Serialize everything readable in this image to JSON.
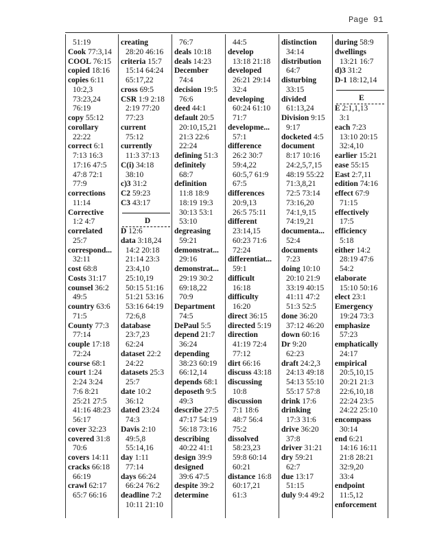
{
  "header": {
    "page_label": "Page 91"
  },
  "columns": [
    [
      {
        "refs": "51:19"
      },
      {
        "term": "Cook",
        "refs": "77:3,14"
      },
      {
        "term": "COOL",
        "refs": "76:15"
      },
      {
        "term": "copied",
        "refs": "18:16"
      },
      {
        "term": "copies",
        "refs": "6:11"
      },
      {
        "refs": "10:2,3"
      },
      {
        "refs": "73:23,24"
      },
      {
        "refs": "76:19"
      },
      {
        "term": "copy",
        "refs": "55:12"
      },
      {
        "term": "corollary"
      },
      {
        "refs": "22:22"
      },
      {
        "term": "correct",
        "refs": "6:1"
      },
      {
        "refs": "7:13 16:3"
      },
      {
        "refs": "17:16 47:5"
      },
      {
        "refs": "47:8 72:1"
      },
      {
        "refs": "77:9"
      },
      {
        "term": "corrections"
      },
      {
        "refs": "11:14"
      },
      {
        "term": "Corrective"
      },
      {
        "refs": "1:2 4:7"
      },
      {
        "term": "correlated"
      },
      {
        "refs": "25:7"
      },
      {
        "term": "correspond..."
      },
      {
        "refs": "32:11"
      },
      {
        "term": "cost",
        "refs": "68:8"
      },
      {
        "term": "Costs",
        "refs": "31:17"
      },
      {
        "term": "counsel",
        "refs": "36:2"
      },
      {
        "refs": "49:5"
      },
      {
        "term": "country",
        "refs": "63:6"
      },
      {
        "refs": "71:5"
      },
      {
        "term": "County",
        "refs": "77:3"
      },
      {
        "refs": "77:14"
      },
      {
        "term": "couple",
        "refs": "17:18"
      },
      {
        "refs": "72:24"
      },
      {
        "term": "course",
        "refs": "68:1"
      },
      {
        "term": "court",
        "refs": "1:24"
      },
      {
        "refs": "2:24 3:24"
      },
      {
        "refs": "7:6 8:21"
      },
      {
        "refs": "25:21 27:5"
      },
      {
        "refs": "41:16 48:23"
      },
      {
        "refs": "56:17"
      },
      {
        "term": "cover",
        "refs": "32:23"
      },
      {
        "term": "covered",
        "refs": "31:8"
      },
      {
        "refs": "70:6"
      },
      {
        "term": "covers",
        "refs": "14:11"
      },
      {
        "term": "cracks",
        "refs": "66:18"
      },
      {
        "refs": "66:19"
      },
      {
        "term": "crawl",
        "refs": "62:17"
      },
      {
        "refs": "65:7 66:16"
      }
    ],
    [
      {
        "term": "creating"
      },
      {
        "refs": "28:20 46:16"
      },
      {
        "term": "criteria",
        "refs": "15:7"
      },
      {
        "refs": "15:14 64:24"
      },
      {
        "refs": "65:17,22"
      },
      {
        "term": "cross",
        "refs": "69:5"
      },
      {
        "term": "CSR",
        "refs": "1:9 2:18"
      },
      {
        "refs": "2:19 77:20"
      },
      {
        "refs": "77:23"
      },
      {
        "term": "current"
      },
      {
        "refs": "75:12"
      },
      {
        "term": "currently"
      },
      {
        "refs": "11:3 37:13"
      },
      {
        "term": "C(i)",
        "refs": "34:18"
      },
      {
        "refs": "38:10"
      },
      {
        "term": "c)3",
        "refs": "31:2"
      },
      {
        "term": "C2",
        "refs": "59:23"
      },
      {
        "term": "C3",
        "refs": "43:17"
      },
      {
        "section": "D"
      },
      {
        "term": "D",
        "refs": "12:6"
      },
      {
        "term": "data",
        "refs": "3:18,24"
      },
      {
        "refs": "14:2 20:18"
      },
      {
        "refs": "21:14 23:3"
      },
      {
        "refs": "23:4,10"
      },
      {
        "refs": "25:10,19"
      },
      {
        "refs": "50:15 51:16"
      },
      {
        "refs": "51:21 53:16"
      },
      {
        "refs": "53:16 64:19"
      },
      {
        "refs": "72:6,8"
      },
      {
        "term": "database"
      },
      {
        "refs": "23:7,23"
      },
      {
        "refs": "62:24"
      },
      {
        "term": "dataset",
        "refs": "22:2"
      },
      {
        "refs": "24:22"
      },
      {
        "term": "datasets",
        "refs": "25:3"
      },
      {
        "refs": "25:7"
      },
      {
        "term": "date",
        "refs": "10:2"
      },
      {
        "refs": "36:12"
      },
      {
        "term": "dated",
        "refs": "23:24"
      },
      {
        "refs": "74:3"
      },
      {
        "term": "Davis",
        "refs": "2:10"
      },
      {
        "refs": "49:5,8"
      },
      {
        "refs": "55:14,16"
      },
      {
        "term": "day",
        "refs": "1:11"
      },
      {
        "refs": "77:14"
      },
      {
        "term": "days",
        "refs": "66:24"
      },
      {
        "refs": "66:24 76:2"
      },
      {
        "term": "deadline",
        "refs": "7:2"
      },
      {
        "refs": "10:11 21:10"
      }
    ],
    [
      {
        "refs": "76:7"
      },
      {
        "term": "deals",
        "refs": "10:18"
      },
      {
        "term": "deals",
        "refs": "14:23"
      },
      {
        "term": "December"
      },
      {
        "refs": "74:4"
      },
      {
        "term": "decision",
        "refs": "19:5"
      },
      {
        "refs": "76:6"
      },
      {
        "term": "deed",
        "refs": "44:1"
      },
      {
        "term": "default",
        "refs": "20:5"
      },
      {
        "refs": "20:10,15,21"
      },
      {
        "refs": "21:3 22:6"
      },
      {
        "refs": "22:24"
      },
      {
        "term": "defining",
        "refs": "51:3"
      },
      {
        "term": "definitely"
      },
      {
        "refs": "68:7"
      },
      {
        "term": "definition"
      },
      {
        "refs": "11:8 18:9"
      },
      {
        "refs": "18:19 19:3"
      },
      {
        "refs": "30:13 53:1"
      },
      {
        "refs": "53:10"
      },
      {
        "term": "degreasing"
      },
      {
        "refs": "59:21"
      },
      {
        "term": "demonstrat..."
      },
      {
        "refs": "29:16"
      },
      {
        "term": "demonstrat..."
      },
      {
        "refs": "29:19 30:2"
      },
      {
        "refs": "69:18,22"
      },
      {
        "refs": "70:9"
      },
      {
        "term": "Department"
      },
      {
        "refs": "74:5"
      },
      {
        "term": "DePaul",
        "refs": "5:5"
      },
      {
        "term": "depend",
        "refs": "21:7"
      },
      {
        "refs": "36:24"
      },
      {
        "term": "depending"
      },
      {
        "refs": "38:23 60:19"
      },
      {
        "refs": "66:12,14"
      },
      {
        "term": "depends",
        "refs": "68:1"
      },
      {
        "term": "deposeth",
        "refs": "9:5"
      },
      {
        "refs": "49:3"
      },
      {
        "term": "describe",
        "refs": "27:5"
      },
      {
        "refs": "47:17 54:19"
      },
      {
        "refs": "56:18 73:16"
      },
      {
        "term": "describing"
      },
      {
        "refs": "40:22 41:1"
      },
      {
        "term": "design",
        "refs": "39:9"
      },
      {
        "term": "designed"
      },
      {
        "refs": "39:6 47:5"
      },
      {
        "term": "despite",
        "refs": "39:2"
      },
      {
        "term": "determine"
      }
    ],
    [
      {
        "refs": "44:5"
      },
      {
        "term": "develop"
      },
      {
        "refs": "13:18 21:18"
      },
      {
        "term": "developed"
      },
      {
        "refs": "26:21 29:14"
      },
      {
        "refs": "32:4"
      },
      {
        "term": "developing"
      },
      {
        "refs": "60:24 61:10"
      },
      {
        "refs": "71:7"
      },
      {
        "term": "developme..."
      },
      {
        "refs": "57:1"
      },
      {
        "term": "difference"
      },
      {
        "refs": "26:2 30:7"
      },
      {
        "refs": "59:4,22"
      },
      {
        "refs": "60:5,7 61:9"
      },
      {
        "refs": "67:5"
      },
      {
        "term": "differences"
      },
      {
        "refs": "20:9,13"
      },
      {
        "refs": "26:5 75:11"
      },
      {
        "term": "different"
      },
      {
        "refs": "23:14,15"
      },
      {
        "refs": "60:23 71:6"
      },
      {
        "refs": "72:24"
      },
      {
        "term": "differentiat..."
      },
      {
        "refs": "59:1"
      },
      {
        "term": "difficult"
      },
      {
        "refs": "16:18"
      },
      {
        "term": "difficulty"
      },
      {
        "refs": "16:20"
      },
      {
        "term": "direct",
        "refs": "36:15"
      },
      {
        "term": "directed",
        "refs": "5:19"
      },
      {
        "term": "direction"
      },
      {
        "refs": "41:19 72:4"
      },
      {
        "refs": "77:12"
      },
      {
        "term": "dirt",
        "refs": "66:16"
      },
      {
        "term": "discuss",
        "refs": "43:18"
      },
      {
        "term": "discussing"
      },
      {
        "refs": "10:8"
      },
      {
        "term": "discussion"
      },
      {
        "refs": "7:1 18:6"
      },
      {
        "refs": "48:7 56:4"
      },
      {
        "refs": "75:2"
      },
      {
        "term": "dissolved"
      },
      {
        "refs": "58:23,23"
      },
      {
        "refs": "59:8 60:14"
      },
      {
        "refs": "60:21"
      },
      {
        "term": "distance",
        "refs": "16:8"
      },
      {
        "refs": "60:17,21"
      },
      {
        "refs": "61:3"
      }
    ],
    [
      {
        "term": "distinction"
      },
      {
        "refs": "34:14"
      },
      {
        "term": "distribution"
      },
      {
        "refs": "64:7"
      },
      {
        "term": "disturbing"
      },
      {
        "refs": "33:15"
      },
      {
        "term": "divided"
      },
      {
        "refs": "61:13,24"
      },
      {
        "term": "Division",
        "refs": "9:15"
      },
      {
        "refs": "9:17"
      },
      {
        "term": "docketed",
        "refs": "4:5"
      },
      {
        "term": "document"
      },
      {
        "refs": "8:17 10:16"
      },
      {
        "refs": "24:2,5,7,15"
      },
      {
        "refs": "48:19 55:22"
      },
      {
        "refs": "71:3,8,21"
      },
      {
        "refs": "72:5 73:14"
      },
      {
        "refs": "73:16,20"
      },
      {
        "refs": "74:1,9,15"
      },
      {
        "refs": "74:19,21"
      },
      {
        "term": "documenta..."
      },
      {
        "refs": "52:4"
      },
      {
        "term": "documents"
      },
      {
        "refs": "7:23"
      },
      {
        "term": "doing",
        "refs": "10:10"
      },
      {
        "refs": "20:10 21:9"
      },
      {
        "refs": "33:19 40:15"
      },
      {
        "refs": "41:11 47:2"
      },
      {
        "refs": "51:3 52:5"
      },
      {
        "term": "done",
        "refs": "36:20"
      },
      {
        "refs": "37:12 46:20"
      },
      {
        "term": "down",
        "refs": "60:16"
      },
      {
        "term": "Dr",
        "refs": "9:20"
      },
      {
        "refs": "62:23"
      },
      {
        "term": "draft",
        "refs": "24:2,3"
      },
      {
        "refs": "24:13 49:18"
      },
      {
        "refs": "54:13 55:10"
      },
      {
        "refs": "55:17 57:8"
      },
      {
        "term": "drink",
        "refs": "17:6"
      },
      {
        "term": "drinking"
      },
      {
        "refs": "17:3 31:6"
      },
      {
        "term": "drive",
        "refs": "36:20"
      },
      {
        "refs": "37:8"
      },
      {
        "term": "driver",
        "refs": "31:21"
      },
      {
        "term": "dry",
        "refs": "59:21"
      },
      {
        "refs": "62:7"
      },
      {
        "term": "due",
        "refs": "13:17"
      },
      {
        "refs": "51:15"
      },
      {
        "term": "duly",
        "refs": "9:4 49:2"
      }
    ],
    [
      {
        "term": "during",
        "refs": "58:9"
      },
      {
        "term": "dwellings"
      },
      {
        "refs": "13:21 16:7"
      },
      {
        "term": "d)3",
        "refs": "31:2"
      },
      {
        "term": "D-1",
        "refs": "18:12,14"
      },
      {
        "section": "E"
      },
      {
        "term": "E",
        "refs": "2:1,1,13"
      },
      {
        "refs": "3:1"
      },
      {
        "term": "each",
        "refs": "7:23"
      },
      {
        "refs": "13:10 20:15"
      },
      {
        "refs": "32:4,10"
      },
      {
        "term": "earlier",
        "refs": "15:21"
      },
      {
        "term": "ease",
        "refs": "55:15"
      },
      {
        "term": "East",
        "refs": "2:7,11"
      },
      {
        "term": "edition",
        "refs": "74:16"
      },
      {
        "term": "effect",
        "refs": "67:9"
      },
      {
        "refs": "71:15"
      },
      {
        "term": "effectively"
      },
      {
        "refs": "17:5"
      },
      {
        "term": "efficiency"
      },
      {
        "refs": "5:18"
      },
      {
        "term": "either",
        "refs": "14:2"
      },
      {
        "refs": "28:19 47:6"
      },
      {
        "refs": "54:2"
      },
      {
        "term": "elaborate"
      },
      {
        "refs": "15:10 50:16"
      },
      {
        "term": "elect",
        "refs": "23:1"
      },
      {
        "term": "Emergency"
      },
      {
        "refs": "19:24 73:3"
      },
      {
        "term": "emphasize"
      },
      {
        "refs": "57:23"
      },
      {
        "term": "emphatically"
      },
      {
        "refs": "24:17"
      },
      {
        "term": "empirical"
      },
      {
        "refs": "20:5,10,15"
      },
      {
        "refs": "20:21 21:3"
      },
      {
        "refs": "22:6,10,18"
      },
      {
        "refs": "22:24 23:5"
      },
      {
        "refs": "24:22 25:10"
      },
      {
        "term": "encompass"
      },
      {
        "refs": "30:14"
      },
      {
        "term": "end",
        "refs": "6:21"
      },
      {
        "refs": "14:16 16:11"
      },
      {
        "refs": "21:8 28:21"
      },
      {
        "refs": "32:9,20"
      },
      {
        "refs": "33:4"
      },
      {
        "term": "endpoint"
      },
      {
        "refs": "11:5,12"
      },
      {
        "term": "enforcement"
      }
    ]
  ]
}
